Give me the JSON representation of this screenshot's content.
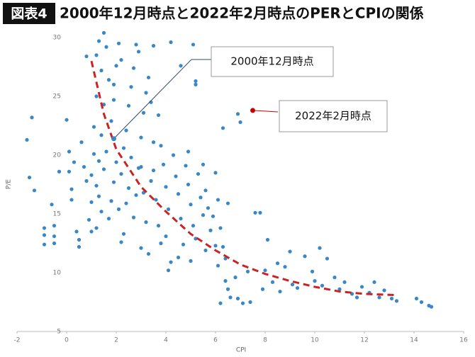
{
  "chart_data": {
    "type": "scatter",
    "badge": "図表4",
    "title": "2000年12月時点と2022年2月時点のPERとCPIの関係",
    "xlabel": "CPI",
    "ylabel": "P/E",
    "xlim": [
      -2,
      16
    ],
    "xticks": [
      -2,
      0,
      2,
      4,
      6,
      8,
      10,
      12,
      14,
      16
    ],
    "ylim": [
      5,
      30
    ],
    "yticks": [
      5,
      10,
      15,
      20,
      25,
      30
    ],
    "grid": false,
    "series": [
      {
        "type": "scatter",
        "color": "#3a87c8",
        "x": [
          -1.6,
          -1.4,
          -1.5,
          -1.3,
          -0.9,
          -0.9,
          -0.9,
          -0.5,
          -0.5,
          -0.5,
          -0.6,
          -0.3,
          0,
          0.1,
          0.2,
          0.3,
          0.1,
          0.5,
          0.5,
          0.4,
          0.2,
          0.6,
          0.7,
          0.8,
          0.9,
          1,
          1,
          1.1,
          1.1,
          1.2,
          1.2,
          1.3,
          1.4,
          1.5,
          1.6,
          1.7,
          1.5,
          1.4,
          1.3,
          1.2,
          1.3,
          1.4,
          1.5,
          1.6,
          1.8,
          1.9,
          2,
          2.1,
          2.2,
          2.0,
          1.9,
          1.8,
          1.7,
          1.2,
          1.0,
          2.1,
          2.2,
          2.3,
          2.4,
          2.5,
          2.6,
          2.7,
          2.8,
          2.6,
          2.5,
          2.4,
          2.3,
          2.2,
          2.7,
          2.8,
          2.9,
          3.0,
          3.1,
          3.2,
          3.3,
          3.4,
          3.0,
          3.1,
          3.2,
          3.0,
          3.3,
          3.4,
          3.5,
          3.6,
          3.7,
          3.8,
          3.5,
          3.7,
          3.9,
          4.0,
          4.1,
          4.0,
          4.2,
          4.1,
          4.3,
          4.4,
          4.5,
          4.6,
          4.7,
          4.5,
          4.2,
          4.8,
          4.9,
          5.0,
          5.1,
          5.2,
          5.0,
          5.3,
          5.4,
          5.5,
          5.2,
          5.2,
          5.1,
          5.6,
          5.7,
          5.8,
          5.6,
          5.9,
          6.0,
          6.1,
          6.1,
          6.2,
          6.3,
          6.4,
          6.3,
          6.4,
          6.5,
          6.6,
          6.2,
          6.8,
          6.9,
          6.9,
          7.0,
          7.1,
          7.3,
          7.4,
          7.6,
          7.8,
          7.9,
          8.0,
          8.3,
          8.6,
          8.8,
          9.0,
          9.1,
          9.3,
          9.6,
          9.9,
          10.0,
          10.2,
          10.3,
          10.5,
          10.8,
          11.0,
          11.2,
          11.5,
          11.7,
          11.9,
          12.2,
          12.4,
          12.6,
          12.8,
          13.1,
          13.3,
          14.1,
          14.3,
          14.6,
          14.7,
          8.1,
          8.5,
          0.8,
          1.9,
          3.5,
          4.6,
          2.9,
          3.8,
          4.9,
          5.5,
          6.0,
          6.5
        ],
        "values": [
          21.3,
          23.2,
          18.1,
          17,
          12.4,
          13.2,
          13.8,
          12.5,
          13.1,
          14,
          15.8,
          18.6,
          23,
          18.6,
          17.1,
          19.4,
          20.3,
          12.2,
          12.8,
          13.5,
          16.2,
          21.1,
          19,
          17.8,
          14.5,
          16,
          18.3,
          20.1,
          22.4,
          25,
          28.5,
          29.7,
          27.2,
          30.4,
          29.2,
          26.4,
          24.3,
          21.7,
          19.5,
          17.4,
          16.5,
          15.2,
          18.8,
          20.3,
          22.9,
          24.7,
          27.6,
          29.5,
          28.1,
          19.4,
          17.7,
          16.1,
          14.6,
          13.8,
          13.5,
          15.4,
          18.4,
          20.6,
          22.1,
          24.2,
          25.8,
          27.4,
          29.4,
          19.8,
          17.2,
          15.9,
          13.3,
          12.6,
          14.7,
          16.6,
          18.9,
          21.5,
          23.6,
          25.3,
          26.6,
          24.5,
          19.0,
          16.8,
          14.3,
          12.1,
          11.6,
          17.8,
          18.7,
          16.2,
          14.0,
          12.5,
          21.1,
          23.4,
          19.2,
          17.3,
          15.4,
          13.1,
          10.9,
          10.2,
          20.0,
          18.2,
          16.7,
          14.6,
          12.4,
          11.3,
          29.6,
          19.1,
          17.5,
          15.8,
          14.0,
          12.9,
          11.0,
          18.4,
          16.4,
          14.9,
          26.3,
          26.0,
          29.4,
          17.0,
          15.5,
          13.6,
          11.9,
          14.8,
          12.3,
          10.6,
          16.2,
          13.8,
          12.2,
          11.2,
          22.3,
          9.3,
          8.6,
          7.9,
          7.4,
          9.6,
          7.8,
          23.5,
          22.8,
          7.4,
          10.1,
          7.5,
          15.1,
          15.1,
          8.6,
          10.2,
          9.2,
          8.4,
          10.5,
          11.8,
          9.0,
          8.7,
          11.4,
          10.1,
          9.3,
          12.1,
          8.9,
          11.2,
          9.6,
          8.6,
          9.2,
          8.2,
          7.9,
          8.8,
          8.3,
          9.2,
          7.9,
          8.5,
          7.8,
          7.6,
          7.8,
          7.5,
          7.2,
          7.1,
          12.8,
          10.8,
          28.4,
          26.0,
          29.3,
          27.6,
          28.8,
          20.8,
          20.3,
          19.2,
          18.5,
          15.9
        ]
      },
      {
        "type": "line",
        "color": "#cc2222",
        "dashed": true,
        "x": [
          1,
          1.5,
          2,
          3,
          4,
          5,
          6,
          7,
          8,
          9,
          10,
          11,
          12,
          13.2
        ],
        "values": [
          28,
          23.5,
          20.5,
          17.3,
          15.2,
          13.3,
          11.9,
          10.7,
          9.9,
          9.3,
          8.8,
          8.4,
          8.2,
          8.1
        ]
      }
    ],
    "annotations": [
      {
        "text": "2000年12月時点",
        "x": 1.9,
        "y": 21.4,
        "color": "#3a87c8"
      },
      {
        "text": "2022年2月時点",
        "x": 7.5,
        "y": 23.8,
        "color": "#cc0000"
      }
    ]
  }
}
